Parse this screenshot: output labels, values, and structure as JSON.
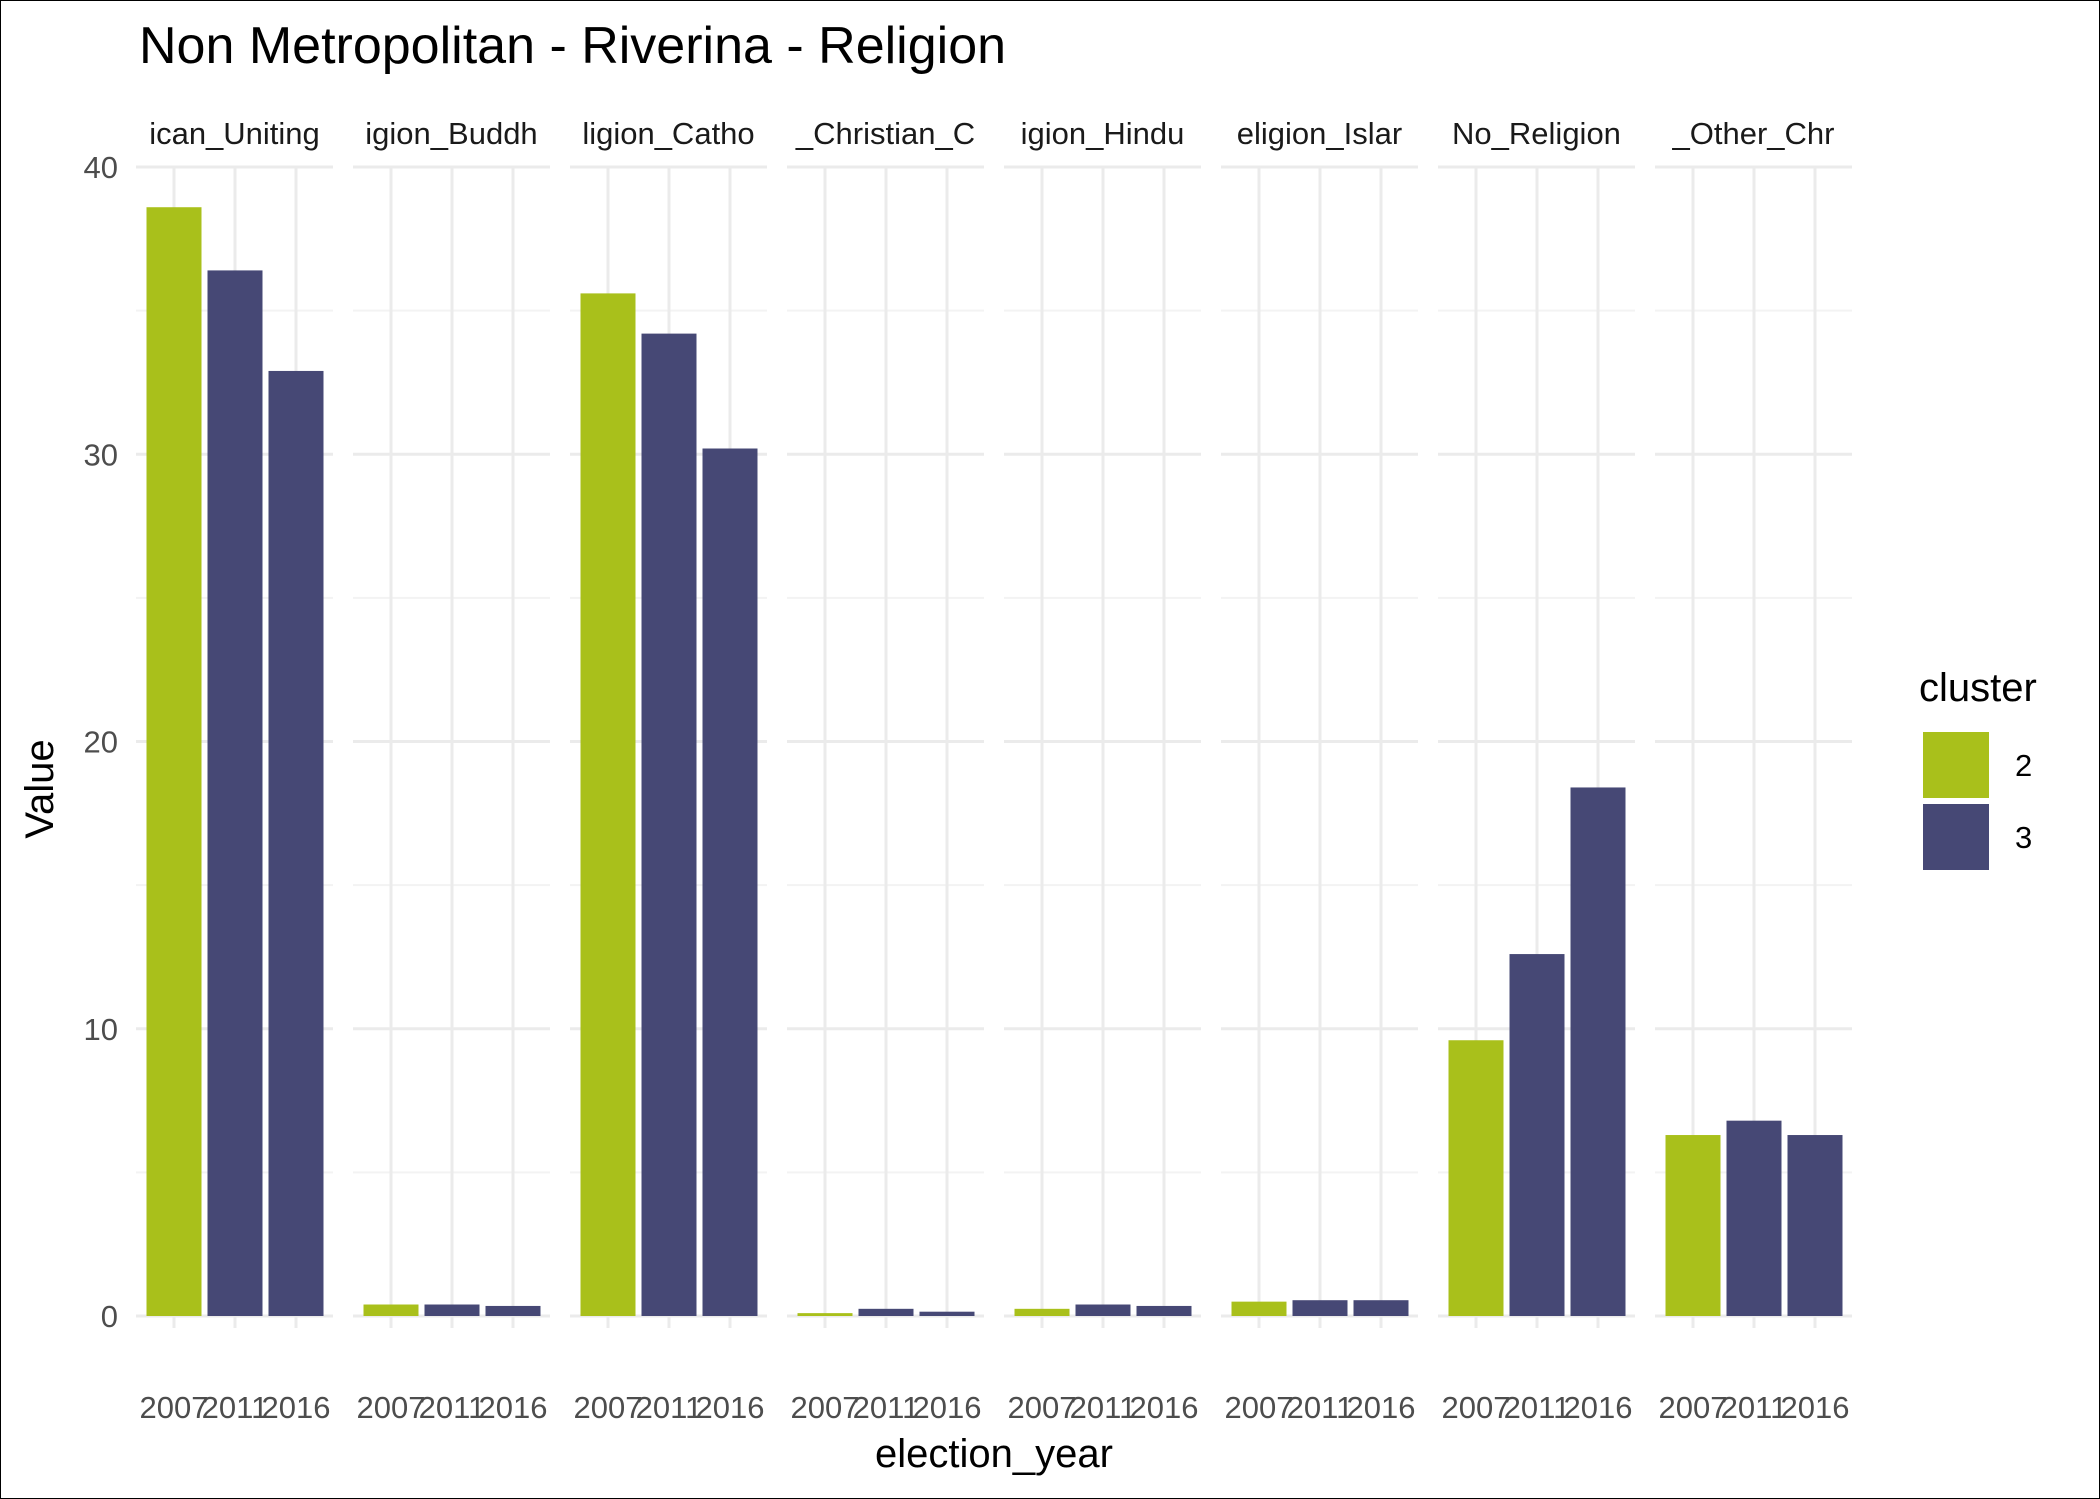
{
  "chart_data": {
    "type": "bar",
    "title": "Non Metropolitan - Riverina - Religion",
    "xlabel": "election_year",
    "ylabel": "Value",
    "ylim": [
      0,
      40
    ],
    "yticks": [
      "0",
      "10",
      "20",
      "30",
      "40"
    ],
    "grid": true,
    "legend": {
      "title": "cluster",
      "position": "right",
      "entries": [
        {
          "label": "2",
          "color": "#a9c01b"
        },
        {
          "label": "3",
          "color": "#464875"
        }
      ]
    },
    "facets": [
      {
        "strip_label": "ican_Uniting",
        "bars": [
          {
            "x": "2007",
            "cluster": "2",
            "value": 38.6
          },
          {
            "x": "2011",
            "cluster": "3",
            "value": 36.4
          },
          {
            "x": "2016",
            "cluster": "3",
            "value": 32.9
          }
        ]
      },
      {
        "strip_label": "igion_Buddh",
        "bars": [
          {
            "x": "2007",
            "cluster": "2",
            "value": 0.4
          },
          {
            "x": "2011",
            "cluster": "3",
            "value": 0.4
          },
          {
            "x": "2016",
            "cluster": "3",
            "value": 0.35
          }
        ]
      },
      {
        "strip_label": "ligion_Catho",
        "bars": [
          {
            "x": "2007",
            "cluster": "2",
            "value": 35.6
          },
          {
            "x": "2011",
            "cluster": "3",
            "value": 34.2
          },
          {
            "x": "2016",
            "cluster": "3",
            "value": 30.2
          }
        ]
      },
      {
        "strip_label": "_Christian_C",
        "bars": [
          {
            "x": "2007",
            "cluster": "2",
            "value": 0.1
          },
          {
            "x": "2011",
            "cluster": "3",
            "value": 0.25
          },
          {
            "x": "2016",
            "cluster": "3",
            "value": 0.15
          }
        ]
      },
      {
        "strip_label": "igion_Hindu",
        "bars": [
          {
            "x": "2007",
            "cluster": "2",
            "value": 0.25
          },
          {
            "x": "2011",
            "cluster": "3",
            "value": 0.4
          },
          {
            "x": "2016",
            "cluster": "3",
            "value": 0.35
          }
        ]
      },
      {
        "strip_label": "eligion_Islar",
        "bars": [
          {
            "x": "2007",
            "cluster": "2",
            "value": 0.5
          },
          {
            "x": "2011",
            "cluster": "3",
            "value": 0.55
          },
          {
            "x": "2016",
            "cluster": "3",
            "value": 0.55
          }
        ]
      },
      {
        "strip_label": "No_Religion",
        "bars": [
          {
            "x": "2007",
            "cluster": "2",
            "value": 9.6
          },
          {
            "x": "2011",
            "cluster": "3",
            "value": 12.6
          },
          {
            "x": "2016",
            "cluster": "3",
            "value": 18.4
          }
        ]
      },
      {
        "strip_label": "_Other_Chr",
        "bars": [
          {
            "x": "2007",
            "cluster": "2",
            "value": 6.3
          },
          {
            "x": "2011",
            "cluster": "3",
            "value": 6.8
          },
          {
            "x": "2016",
            "cluster": "3",
            "value": 6.3
          }
        ]
      }
    ],
    "x_tick_labels": [
      "2007",
      "2011",
      "2016"
    ]
  }
}
